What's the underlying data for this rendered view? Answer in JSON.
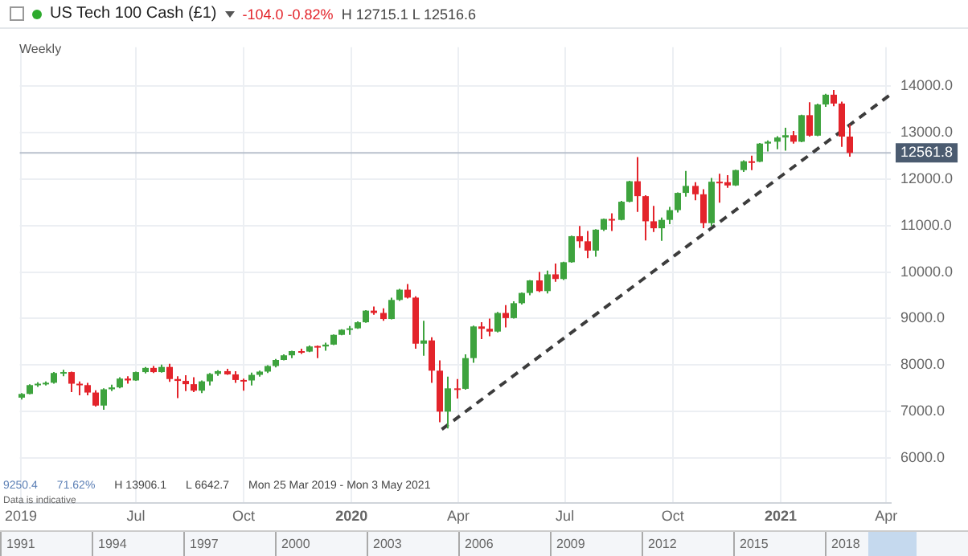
{
  "chart_data": {
    "type": "candlestick",
    "title": "US Tech 100 Cash (£1)",
    "subtitle": "-104.0 -0.82%",
    "annotations": [
      "H 12715.1 L 12516.6",
      "Weekly",
      "9250.4",
      "71.62%",
      "H 13906.1",
      "L 6642.7",
      "Mon 25 Mar 2019 - Mon 3 May 2021",
      "Data is indicative",
      "1991",
      "1994",
      "1997",
      "2000",
      "2003",
      "2006",
      "2009",
      "2012",
      "2015",
      "2018"
    ],
    "x": [
      "2019-03-25",
      "2019-04-01",
      "2019-04-08",
      "2019-04-15",
      "2019-04-22",
      "2019-04-29",
      "2019-05-06",
      "2019-05-13",
      "2019-05-20",
      "2019-05-27",
      "2019-06-03",
      "2019-06-10",
      "2019-06-17",
      "2019-06-24",
      "2019-07-01",
      "2019-07-08",
      "2019-07-15",
      "2019-07-22",
      "2019-07-29",
      "2019-08-05",
      "2019-08-12",
      "2019-08-19",
      "2019-08-26",
      "2019-09-02",
      "2019-09-09",
      "2019-09-16",
      "2019-09-23",
      "2019-09-30",
      "2019-10-07",
      "2019-10-14",
      "2019-10-21",
      "2019-10-28",
      "2019-11-04",
      "2019-11-11",
      "2019-11-18",
      "2019-11-25",
      "2019-12-02",
      "2019-12-09",
      "2019-12-16",
      "2019-12-23",
      "2019-12-30",
      "2020-01-06",
      "2020-01-13",
      "2020-01-20",
      "2020-01-27",
      "2020-02-03",
      "2020-02-10",
      "2020-02-17",
      "2020-02-24",
      "2020-03-02",
      "2020-03-09",
      "2020-03-16",
      "2020-03-23",
      "2020-03-30",
      "2020-04-06",
      "2020-04-13",
      "2020-04-20",
      "2020-04-27",
      "2020-05-04",
      "2020-05-11",
      "2020-05-18",
      "2020-05-25",
      "2020-06-01",
      "2020-06-08",
      "2020-06-15",
      "2020-06-22",
      "2020-06-29",
      "2020-07-06",
      "2020-07-13",
      "2020-07-20",
      "2020-07-27",
      "2020-08-03",
      "2020-08-10",
      "2020-08-17",
      "2020-08-24",
      "2020-08-31",
      "2020-09-07",
      "2020-09-14",
      "2020-09-21",
      "2020-09-28",
      "2020-10-05",
      "2020-10-12",
      "2020-10-19",
      "2020-10-26",
      "2020-11-02",
      "2020-11-09",
      "2020-11-16",
      "2020-11-23",
      "2020-11-30",
      "2020-12-07",
      "2020-12-14",
      "2020-12-21",
      "2020-12-28",
      "2021-01-04",
      "2021-01-11",
      "2021-01-18",
      "2021-01-25",
      "2021-02-01",
      "2021-02-08",
      "2021-02-15",
      "2021-02-22",
      "2021-03-01"
    ],
    "ohlc": [
      [
        7300,
        7400,
        7260,
        7380
      ],
      [
        7380,
        7590,
        7370,
        7570
      ],
      [
        7570,
        7630,
        7530,
        7600
      ],
      [
        7600,
        7650,
        7560,
        7620
      ],
      [
        7620,
        7850,
        7600,
        7830
      ],
      [
        7830,
        7900,
        7760,
        7850
      ],
      [
        7850,
        7860,
        7420,
        7600
      ],
      [
        7600,
        7650,
        7350,
        7570
      ],
      [
        7570,
        7620,
        7350,
        7410
      ],
      [
        7410,
        7460,
        7110,
        7130
      ],
      [
        7130,
        7500,
        7040,
        7480
      ],
      [
        7480,
        7580,
        7440,
        7520
      ],
      [
        7520,
        7740,
        7500,
        7710
      ],
      [
        7710,
        7760,
        7600,
        7670
      ],
      [
        7670,
        7860,
        7660,
        7850
      ],
      [
        7850,
        7960,
        7820,
        7940
      ],
      [
        7940,
        7980,
        7830,
        7850
      ],
      [
        7850,
        8010,
        7840,
        7960
      ],
      [
        7960,
        8030,
        7640,
        7700
      ],
      [
        7700,
        7760,
        7290,
        7660
      ],
      [
        7660,
        7780,
        7440,
        7590
      ],
      [
        7590,
        7740,
        7420,
        7450
      ],
      [
        7450,
        7670,
        7400,
        7650
      ],
      [
        7650,
        7830,
        7560,
        7810
      ],
      [
        7810,
        7890,
        7770,
        7870
      ],
      [
        7870,
        7920,
        7790,
        7800
      ],
      [
        7800,
        7870,
        7620,
        7680
      ],
      [
        7680,
        7710,
        7450,
        7670
      ],
      [
        7670,
        7840,
        7560,
        7790
      ],
      [
        7790,
        7880,
        7750,
        7860
      ],
      [
        7860,
        8000,
        7830,
        7980
      ],
      [
        7980,
        8130,
        7950,
        8110
      ],
      [
        8110,
        8230,
        8100,
        8210
      ],
      [
        8210,
        8310,
        8150,
        8300
      ],
      [
        8300,
        8350,
        8240,
        8290
      ],
      [
        8290,
        8420,
        8280,
        8400
      ],
      [
        8410,
        8420,
        8150,
        8400
      ],
      [
        8400,
        8480,
        8310,
        8440
      ],
      [
        8440,
        8660,
        8430,
        8650
      ],
      [
        8650,
        8770,
        8640,
        8760
      ],
      [
        8760,
        8840,
        8650,
        8790
      ],
      [
        8790,
        8940,
        8780,
        8920
      ],
      [
        8920,
        9180,
        8910,
        9170
      ],
      [
        9170,
        9260,
        9080,
        9120
      ],
      [
        9120,
        9220,
        8950,
        8990
      ],
      [
        8990,
        9450,
        8980,
        9400
      ],
      [
        9400,
        9640,
        9380,
        9620
      ],
      [
        9620,
        9740,
        9430,
        9450
      ],
      [
        9450,
        9480,
        8350,
        8460
      ],
      [
        8460,
        8950,
        8200,
        8530
      ],
      [
        8530,
        8600,
        7620,
        7880
      ],
      [
        7880,
        8100,
        6770,
        7000
      ],
      [
        7000,
        7750,
        6640,
        7500
      ],
      [
        7500,
        7700,
        7280,
        7490
      ],
      [
        7490,
        8230,
        7470,
        8150
      ],
      [
        8150,
        8850,
        8050,
        8830
      ],
      [
        8830,
        8920,
        8560,
        8780
      ],
      [
        8780,
        9000,
        8620,
        8720
      ],
      [
        8720,
        9140,
        8700,
        9120
      ],
      [
        9120,
        9290,
        8810,
        9010
      ],
      [
        9010,
        9370,
        9000,
        9330
      ],
      [
        9330,
        9560,
        9300,
        9550
      ],
      [
        9550,
        9830,
        9500,
        9820
      ],
      [
        9820,
        10000,
        9570,
        9590
      ],
      [
        9590,
        10030,
        9540,
        9950
      ],
      [
        9950,
        10180,
        9790,
        9850
      ],
      [
        9850,
        10220,
        9830,
        10210
      ],
      [
        10210,
        10780,
        10200,
        10770
      ],
      [
        10770,
        10990,
        10520,
        10660
      ],
      [
        10660,
        10880,
        10300,
        10460
      ],
      [
        10460,
        10920,
        10330,
        10910
      ],
      [
        10910,
        11150,
        10880,
        11140
      ],
      [
        11140,
        11260,
        10880,
        11120
      ],
      [
        11120,
        11530,
        11110,
        11510
      ],
      [
        11510,
        11960,
        11500,
        11950
      ],
      [
        11950,
        12470,
        11290,
        11630
      ],
      [
        11630,
        11650,
        10680,
        11090
      ],
      [
        11090,
        11420,
        10860,
        10940
      ],
      [
        10940,
        11170,
        10670,
        11120
      ],
      [
        11120,
        11400,
        11030,
        11330
      ],
      [
        11330,
        11710,
        11280,
        11700
      ],
      [
        11700,
        12170,
        11620,
        11850
      ],
      [
        11850,
        11930,
        11540,
        11670
      ],
      [
        11670,
        11780,
        10940,
        11050
      ],
      [
        11050,
        12020,
        10990,
        11940
      ],
      [
        11940,
        12110,
        11490,
        11930
      ],
      [
        11930,
        12080,
        11810,
        11860
      ],
      [
        11860,
        12200,
        11850,
        12190
      ],
      [
        12190,
        12400,
        12150,
        12380
      ],
      [
        12380,
        12500,
        12190,
        12370
      ],
      [
        12370,
        12770,
        12360,
        12760
      ],
      [
        12760,
        12830,
        12590,
        12800
      ],
      [
        12800,
        12920,
        12640,
        12890
      ],
      [
        12890,
        13100,
        12610,
        12940
      ],
      [
        12940,
        13030,
        12760,
        12800
      ],
      [
        12800,
        13380,
        12790,
        13370
      ],
      [
        13370,
        13650,
        12910,
        12930
      ],
      [
        12930,
        13620,
        12920,
        13600
      ],
      [
        13600,
        13830,
        13550,
        13810
      ],
      [
        13810,
        13910,
        13560,
        13620
      ],
      [
        13620,
        13660,
        12690,
        12910
      ],
      [
        12910,
        13170,
        12480,
        12560
      ]
    ],
    "series": [
      {
        "type": "line",
        "x": [
          "2020-03-18",
          "2021-04-05"
        ],
        "values": [
          6620,
          13820
        ],
        "color": "#3c3c3c",
        "line_style": "dashed"
      }
    ],
    "xlim": [
      "2019-03-24",
      "2021-04-05"
    ],
    "xticks": [
      {
        "value": "2019-03-25",
        "label": "2019"
      },
      {
        "value": "2019-07-01",
        "label": "Jul"
      },
      {
        "value": "2019-10-01",
        "label": "Oct"
      },
      {
        "value": "2020-01-01",
        "label": "2020"
      },
      {
        "value": "2020-04-01",
        "label": "Apr"
      },
      {
        "value": "2020-07-01",
        "label": "Jul"
      },
      {
        "value": "2020-10-01",
        "label": "Oct"
      },
      {
        "value": "2021-01-01",
        "label": "2021"
      },
      {
        "value": "2021-04-01",
        "label": "Apr"
      }
    ],
    "ylim": [
      5030,
      14830
    ],
    "yticks": [
      {
        "value": 6000,
        "label": "6000.0"
      },
      {
        "value": 7000,
        "label": "7000.0"
      },
      {
        "value": 8000,
        "label": "8000.0"
      },
      {
        "value": 9000,
        "label": "9000.0"
      },
      {
        "value": 10000,
        "label": "10000.0"
      },
      {
        "value": 11000,
        "label": "11000.0"
      },
      {
        "value": 12000,
        "label": "12000.0"
      },
      {
        "value": 13000,
        "label": "13000.0"
      },
      {
        "value": 14000,
        "label": "14000.0"
      }
    ],
    "ref_lines": [
      {
        "axis": "y",
        "value": 12561.8,
        "label": "12561.8",
        "color": "#b8c0cc"
      }
    ],
    "grid": true,
    "legend": false
  }
}
